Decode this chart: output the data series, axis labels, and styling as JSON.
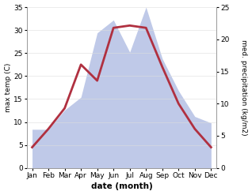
{
  "months": [
    "Jan",
    "Feb",
    "Mar",
    "Apr",
    "May",
    "Jun",
    "Jul",
    "Aug",
    "Sep",
    "Oct",
    "Nov",
    "Dec"
  ],
  "temp": [
    4.5,
    8.5,
    13.0,
    22.5,
    19.0,
    30.5,
    31.0,
    30.5,
    22.0,
    14.0,
    8.5,
    4.5
  ],
  "precip": [
    6.0,
    6.0,
    9.0,
    11.0,
    21.0,
    23.0,
    18.0,
    25.0,
    17.0,
    12.0,
    8.0,
    7.0
  ],
  "temp_color": "#b03040",
  "precip_fill_color": "#bfc9e8",
  "precip_edge_color": "#9aa8d0",
  "xlabel": "date (month)",
  "ylabel_left": "max temp (C)",
  "ylabel_right": "med. precipitation (kg/m2)",
  "ylim_left": [
    0,
    35
  ],
  "ylim_right": [
    0,
    25
  ],
  "yticks_left": [
    0,
    5,
    10,
    15,
    20,
    25,
    30,
    35
  ],
  "yticks_right": [
    0,
    5,
    10,
    15,
    20,
    25
  ],
  "bg_color": "#ffffff"
}
